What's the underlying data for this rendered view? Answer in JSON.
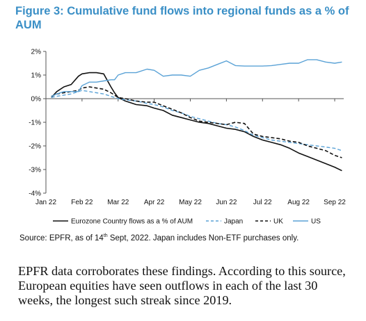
{
  "figure": {
    "title": "Figure 3: Cumulative fund flows into regional funds as a % of AUM"
  },
  "source_note": {
    "prefix": "Source: EPFR, as of 14",
    "superscript": "th",
    "suffix": " Sept, 2022. Japan includes Non-ETF purchases only."
  },
  "body_text": "EPFR data corroborates these findings. According to this source, European equities have seen outflows in each of the last 30 weeks, the longest such streak since 2019.",
  "colors": {
    "eurozone": "#111111",
    "japan": "#5aa2d6",
    "uk": "#111111",
    "us": "#5aa2d6",
    "title": "#3a8fc6"
  },
  "chart_data": {
    "type": "line",
    "title": "",
    "xlabel": "",
    "ylabel": "",
    "ylim": [
      -4,
      2
    ],
    "xlim": [
      0,
      8.25
    ],
    "grid": false,
    "legend_position": "bottom",
    "x_tick_labels": [
      "Jan 22",
      "Feb 22",
      "Mar 22",
      "Apr 22",
      "May 22",
      "Jun 22",
      "Jul 22",
      "Aug 22",
      "Sep 22"
    ],
    "y_tick_labels": [
      "2%",
      "1%",
      "0%",
      "-1%",
      "-2%",
      "-3%",
      "-4%"
    ],
    "x": [
      0.15,
      0.3,
      0.5,
      0.7,
      0.9,
      1.0,
      1.2,
      1.4,
      1.6,
      1.8,
      1.9,
      2.0,
      2.2,
      2.5,
      2.8,
      3.0,
      3.25,
      3.5,
      3.75,
      4.0,
      4.25,
      4.5,
      4.75,
      5.0,
      5.25,
      5.5,
      5.75,
      6.0,
      6.25,
      6.5,
      6.75,
      7.0,
      7.25,
      7.5,
      7.75,
      8.0,
      8.2
    ],
    "series": [
      {
        "name": "Eurozone Country flows as a % of AUM",
        "style": "solid",
        "values": [
          0.05,
          0.3,
          0.5,
          0.6,
          0.95,
          1.05,
          1.1,
          1.1,
          1.05,
          0.5,
          0.25,
          0.05,
          -0.1,
          -0.25,
          -0.3,
          -0.4,
          -0.5,
          -0.7,
          -0.8,
          -0.9,
          -1.0,
          -1.05,
          -1.15,
          -1.25,
          -1.3,
          -1.4,
          -1.6,
          -1.75,
          -1.85,
          -1.95,
          -2.1,
          -2.3,
          -2.45,
          -2.6,
          -2.75,
          -2.9,
          -3.05
        ]
      },
      {
        "name": "Japan",
        "style": "dashed",
        "values": [
          0.05,
          0.1,
          0.15,
          0.2,
          0.3,
          0.35,
          0.3,
          0.25,
          0.2,
          0.1,
          0.05,
          0.0,
          -0.05,
          -0.1,
          -0.2,
          -0.25,
          -0.35,
          -0.5,
          -0.6,
          -0.75,
          -0.85,
          -0.95,
          -1.05,
          -1.1,
          -1.2,
          -1.35,
          -1.55,
          -1.65,
          -1.75,
          -1.8,
          -1.85,
          -1.9,
          -1.95,
          -2.0,
          -2.05,
          -2.1,
          -2.2
        ]
      },
      {
        "name": "UK",
        "style": "dashed",
        "values": [
          0.1,
          0.2,
          0.25,
          0.3,
          0.35,
          0.45,
          0.5,
          0.45,
          0.4,
          0.25,
          0.15,
          0.05,
          0.0,
          -0.1,
          -0.15,
          -0.15,
          -0.3,
          -0.45,
          -0.6,
          -0.8,
          -0.95,
          -1.0,
          -1.05,
          -1.1,
          -1.0,
          -1.05,
          -1.5,
          -1.6,
          -1.65,
          -1.7,
          -1.8,
          -1.85,
          -2.0,
          -2.1,
          -2.2,
          -2.4,
          -2.5
        ]
      },
      {
        "name": "US",
        "style": "solid",
        "values": [
          0.1,
          0.2,
          0.3,
          0.3,
          0.3,
          0.55,
          0.7,
          0.7,
          0.75,
          0.8,
          0.8,
          1.0,
          1.1,
          1.1,
          1.25,
          1.2,
          0.95,
          1.0,
          1.0,
          0.95,
          1.2,
          1.3,
          1.45,
          1.6,
          1.4,
          1.38,
          1.38,
          1.38,
          1.4,
          1.45,
          1.5,
          1.5,
          1.65,
          1.65,
          1.55,
          1.5,
          1.55
        ]
      }
    ]
  }
}
